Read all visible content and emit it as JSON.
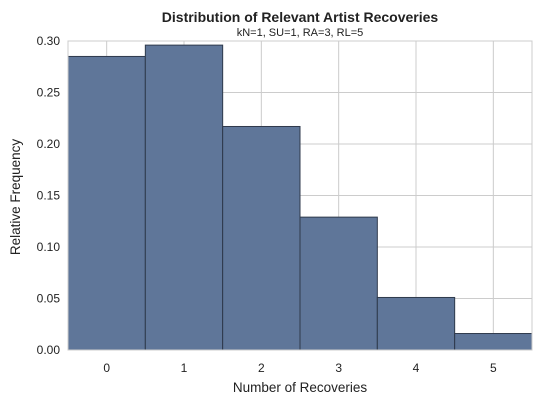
{
  "chart_data": {
    "type": "bar",
    "title": "Distribution of Relevant Artist Recoveries",
    "subtitle": "kN=1, SU=1, RA=3, RL=5",
    "xlabel": "Number of Recoveries",
    "ylabel": "Relative Frequency",
    "categories": [
      "0",
      "1",
      "2",
      "3",
      "4",
      "5"
    ],
    "values": [
      0.285,
      0.296,
      0.217,
      0.129,
      0.051,
      0.016
    ],
    "xlim": [
      -0.5,
      5.5
    ],
    "ylim": [
      0,
      0.3
    ],
    "yticks": [
      "0.00",
      "0.05",
      "0.10",
      "0.15",
      "0.20",
      "0.25",
      "0.30"
    ],
    "grid": true,
    "colors": {
      "bar": "#5f7699",
      "edge": "#2f3a4c",
      "grid": "#cccccc"
    }
  }
}
